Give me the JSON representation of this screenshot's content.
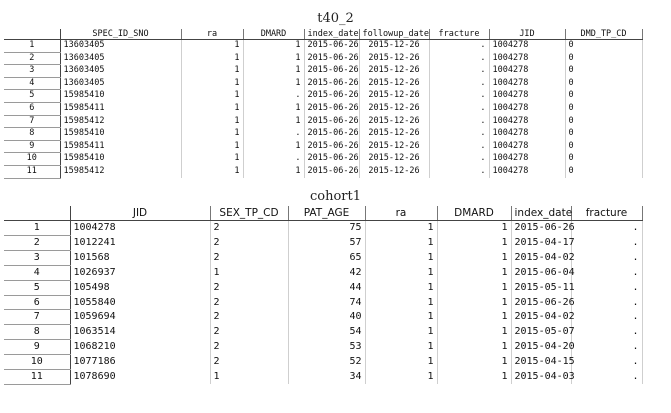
{
  "table1": {
    "title": "t40_2",
    "columns": [
      "",
      "SPEC_ID_SNO",
      "ra",
      "DMARD",
      "index_date",
      "followup_date",
      "fracture",
      "JID",
      "DMD_TP_CD"
    ],
    "rows": [
      [
        "1",
        "13603405",
        "1",
        "1",
        "2015-06-26",
        "2015-12-26",
        ".",
        "1004278",
        "0"
      ],
      [
        "2",
        "13603405",
        "1",
        "1",
        "2015-06-26",
        "2015-12-26",
        ".",
        "1004278",
        "0"
      ],
      [
        "3",
        "13603405",
        "1",
        "1",
        "2015-06-26",
        "2015-12-26",
        ".",
        "1004278",
        "0"
      ],
      [
        "4",
        "13603405",
        "1",
        "1",
        "2015-06-26",
        "2015-12-26",
        ".",
        "1004278",
        "0"
      ],
      [
        "5",
        "15985410",
        "1",
        ".",
        "2015-06-26",
        "2015-12-26",
        ".",
        "1004278",
        "0"
      ],
      [
        "6",
        "15985411",
        "1",
        "1",
        "2015-06-26",
        "2015-12-26",
        ".",
        "1004278",
        "0"
      ],
      [
        "7",
        "15985412",
        "1",
        "1",
        "2015-06-26",
        "2015-12-26",
        ".",
        "1004278",
        "0"
      ],
      [
        "8",
        "15985410",
        "1",
        ".",
        "2015-06-26",
        "2015-12-26",
        ".",
        "1004278",
        "0"
      ],
      [
        "9",
        "15985411",
        "1",
        "1",
        "2015-06-26",
        "2015-12-26",
        ".",
        "1004278",
        "0"
      ],
      [
        "10",
        "15985410",
        "1",
        ".",
        "2015-06-26",
        "2015-12-26",
        ".",
        "1004278",
        "0"
      ],
      [
        "11",
        "15985412",
        "1",
        "1",
        "2015-06-26",
        "2015-12-26",
        ".",
        "1004278",
        "0"
      ]
    ]
  },
  "table2": {
    "title": "cohort1",
    "columns": [
      "",
      "JID",
      "SEX_TP_CD",
      "PAT_AGE",
      "ra",
      "DMARD",
      "index_date",
      "fracture"
    ],
    "rows": [
      [
        "1",
        "1004278",
        "2",
        "75",
        "1",
        "1",
        "2015-06-26",
        "."
      ],
      [
        "2",
        "1012241",
        "2",
        "57",
        "1",
        "1",
        "2015-04-17",
        "."
      ],
      [
        "3",
        "101568",
        "2",
        "65",
        "1",
        "1",
        "2015-04-02",
        "."
      ],
      [
        "4",
        "1026937",
        "1",
        "42",
        "1",
        "1",
        "2015-06-04",
        "."
      ],
      [
        "5",
        "105498",
        "2",
        "44",
        "1",
        "1",
        "2015-05-11",
        "."
      ],
      [
        "6",
        "1055840",
        "2",
        "74",
        "1",
        "1",
        "2015-06-26",
        "."
      ],
      [
        "7",
        "1059694",
        "2",
        "40",
        "1",
        "1",
        "2015-04-02",
        "."
      ],
      [
        "8",
        "1063514",
        "2",
        "54",
        "1",
        "1",
        "2015-05-07",
        "."
      ],
      [
        "9",
        "1068210",
        "2",
        "53",
        "1",
        "1",
        "2015-04-20",
        "."
      ],
      [
        "10",
        "1077186",
        "2",
        "52",
        "1",
        "1",
        "2015-04-15",
        "."
      ],
      [
        "11",
        "1078690",
        "1",
        "34",
        "1",
        "1",
        "2015-04-03",
        "."
      ]
    ]
  }
}
